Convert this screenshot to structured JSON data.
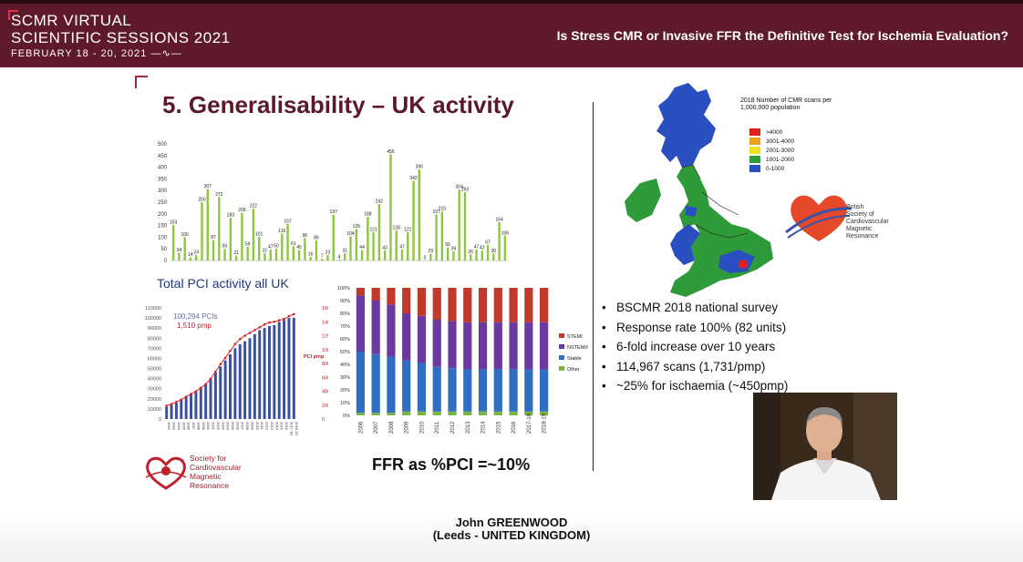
{
  "header": {
    "brand_line1": "SCMR VIRTUAL",
    "brand_line2": "SCIENTIFIC SESSIONS 2021",
    "brand_dates": "FEBRUARY 18 - 20, 2021",
    "session_title": "Is Stress CMR or Invasive FFR the Definitive Test for Ischemia Evaluation?"
  },
  "slide": {
    "title": "5. Generalisability – UK activity",
    "pci_title": "Total PCI activity all UK",
    "ffr_caption": "FFR as %PCI =~10%",
    "scmr_logo_text": [
      "Society for",
      "Cardiovascular",
      "Magnetic",
      "Resonance"
    ],
    "bscmr_logo_text": [
      "British",
      "Society of",
      "Cardiovascular",
      "Magnetic",
      "Resonance"
    ],
    "map_legend_title": "2018 Number of CMR scans per 1,000,000 population",
    "map_legend": [
      {
        "label": ">4000",
        "color": "#e02020"
      },
      {
        "label": "3001-4000",
        "color": "#f0a020"
      },
      {
        "label": "2001-3000",
        "color": "#f0e020"
      },
      {
        "label": "1001-2000",
        "color": "#2e9a3a"
      },
      {
        "label": "0-1000",
        "color": "#2a4fc0"
      }
    ],
    "bullets": [
      "BSCMR 2018 national survey",
      "Response rate 100% (82 units)",
      "6-fold increase over 10 years",
      "114,967 scans (1,731/pmp)",
      "~25% for ischaemia (~450pmp)"
    ]
  },
  "speaker": {
    "name": "John GREENWOOD",
    "affiliation": "(Leeds - UNITED KINGDOM)"
  },
  "chart_data": [
    {
      "type": "bar",
      "color": "#8dc63f",
      "ylim": [
        0,
        500
      ],
      "yticks": [
        "500",
        "450",
        "400",
        "350",
        "300",
        "250",
        "200",
        "150",
        "100",
        "50",
        "0"
      ],
      "values": [
        153,
        34,
        100,
        14,
        24,
        250,
        307,
        87,
        272,
        50,
        183,
        21,
        205,
        59,
        222,
        101,
        31,
        47,
        50,
        116,
        157,
        61,
        45,
        96,
        16,
        86,
        7,
        23,
        197,
        4,
        31,
        104,
        135,
        44,
        188,
        121,
        242,
        43,
        456,
        128,
        47,
        121,
        342,
        390,
        0,
        29,
        197,
        210,
        56,
        39,
        304,
        293,
        26,
        47,
        42,
        67,
        30,
        164,
        106
      ],
      "title": "",
      "xlabel": "",
      "ylabel": ""
    },
    {
      "type": "bar",
      "annotation_line1": "100,294 PCIs",
      "annotation_line2": "1,510 pmp",
      "y2label": "PCI pmp",
      "ylim": [
        0,
        110000
      ],
      "y2lim": [
        0,
        1600
      ],
      "yticks": [
        "110000",
        "100000",
        "90000",
        "80000",
        "70000",
        "60000",
        "50000",
        "40000",
        "30000",
        "20000",
        "10000",
        "0"
      ],
      "y2ticks": [
        "1600",
        "1400",
        "1200",
        "1000",
        "800",
        "600",
        "400",
        "200",
        "0"
      ],
      "categories": [
        "1992",
        "1993",
        "1994",
        "1995",
        "1996",
        "1997",
        "1998",
        "1999",
        "2000",
        "2001",
        "2002",
        "2003",
        "2004",
        "2005",
        "2006",
        "2007",
        "2008",
        "2009",
        "2010",
        "2011",
        "2012",
        "2013",
        "2014",
        "2015",
        "2016",
        "2017-18",
        "2018-19"
      ],
      "bars": [
        12000,
        14000,
        16000,
        19000,
        22000,
        25000,
        28000,
        31000,
        35000,
        40000,
        46000,
        52000,
        58000,
        64000,
        70000,
        74000,
        77000,
        80000,
        84000,
        88000,
        90000,
        92000,
        93000,
        96000,
        98000,
        100000,
        100294
      ],
      "line": [
        190,
        215,
        245,
        280,
        320,
        360,
        400,
        450,
        500,
        580,
        680,
        790,
        880,
        980,
        1080,
        1150,
        1200,
        1240,
        1280,
        1320,
        1360,
        1390,
        1400,
        1420,
        1440,
        1480,
        1510
      ]
    },
    {
      "type": "bar",
      "stacked": true,
      "categories": [
        "2006",
        "2007",
        "2008",
        "2009",
        "2010",
        "2011",
        "2012",
        "2013",
        "2014",
        "2015",
        "2016",
        "2017-18",
        "2018-19"
      ],
      "yticks": [
        "100%",
        "90%",
        "80%",
        "70%",
        "60%",
        "50%",
        "40%",
        "30%",
        "20%",
        "10%",
        "0%"
      ],
      "series": [
        {
          "name": "STEMI",
          "color": "#c0392b",
          "values": [
            6,
            10,
            13,
            20,
            22,
            25,
            26,
            27,
            27,
            27,
            27,
            27,
            27
          ]
        },
        {
          "name": "NSTEMI/UA",
          "color": "#6a3aa0",
          "values": [
            44,
            42,
            41,
            37,
            37,
            37,
            37,
            37,
            37,
            37,
            37,
            37,
            37
          ]
        },
        {
          "name": "Stable",
          "color": "#2e6fc4",
          "values": [
            48,
            46,
            44,
            40,
            38,
            35,
            34,
            33,
            33,
            33,
            33,
            33,
            33
          ]
        },
        {
          "name": "Other",
          "color": "#7cb342",
          "values": [
            2,
            2,
            2,
            3,
            3,
            3,
            3,
            3,
            3,
            3,
            3,
            3,
            3
          ]
        }
      ]
    }
  ]
}
